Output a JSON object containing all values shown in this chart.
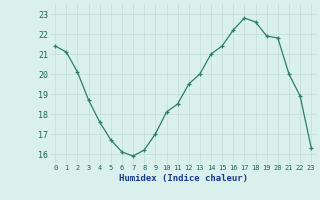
{
  "x": [
    0,
    1,
    2,
    3,
    4,
    5,
    6,
    7,
    8,
    9,
    10,
    11,
    12,
    13,
    14,
    15,
    16,
    17,
    18,
    19,
    20,
    21,
    22,
    23
  ],
  "y": [
    21.4,
    21.1,
    20.1,
    18.7,
    17.6,
    16.7,
    16.1,
    15.9,
    16.2,
    17.0,
    18.1,
    18.5,
    19.5,
    20.0,
    21.0,
    21.4,
    22.2,
    22.8,
    22.6,
    21.9,
    21.8,
    20.0,
    18.9,
    16.3
  ],
  "xlabel": "Humidex (Indice chaleur)",
  "xlim": [
    -0.5,
    23.5
  ],
  "ylim": [
    15.5,
    23.5
  ],
  "yticks": [
    16,
    17,
    18,
    19,
    20,
    21,
    22,
    23
  ],
  "xticks": [
    0,
    1,
    2,
    3,
    4,
    5,
    6,
    7,
    8,
    9,
    10,
    11,
    12,
    13,
    14,
    15,
    16,
    17,
    18,
    19,
    20,
    21,
    22,
    23
  ],
  "line_color": "#2d7d6e",
  "bg_color": "#d9f0ed",
  "grid_color": "#c4dcd8",
  "tick_label_color": "#1a6655",
  "xlabel_color": "#1a3a8a",
  "marker": "+"
}
